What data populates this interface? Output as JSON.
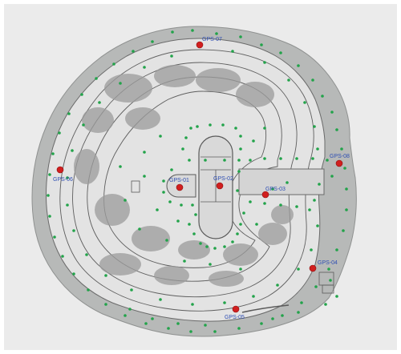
{
  "map": {
    "colors": {
      "panel_bg": "#ebebeb",
      "outer_ground": "#b7b9b8",
      "inner_ground": "#e3e3e3",
      "contour": "#5e5e5e",
      "vegetation": "#9c9c9c",
      "survey_point": "#22a34a",
      "gps_marker": "#d11f1f",
      "gps_label": "#2f4fb3"
    },
    "gps_points": [
      {
        "label": "GPS-01"
      },
      {
        "label": "GPS-02"
      },
      {
        "label": "GPS-03"
      },
      {
        "label": "GPS-04"
      },
      {
        "label": "GPS-05"
      },
      {
        "label": "GPS-06"
      },
      {
        "label": "GPS-07"
      },
      {
        "label": "GPS-08"
      }
    ]
  }
}
